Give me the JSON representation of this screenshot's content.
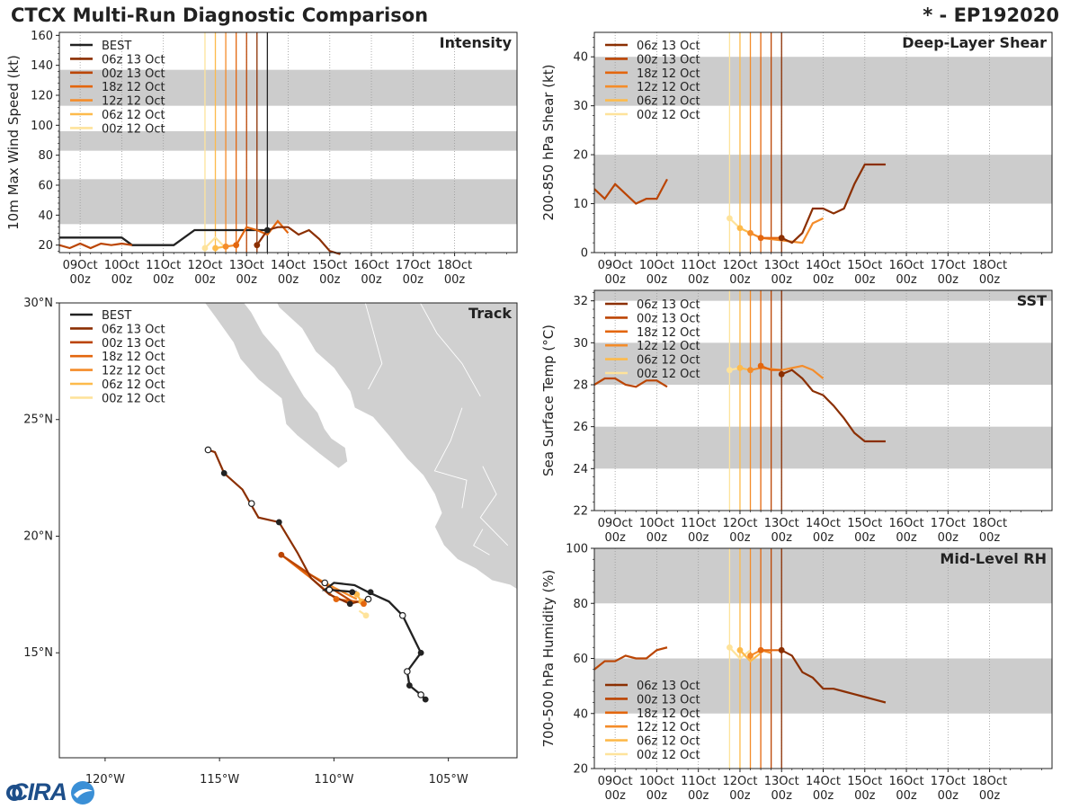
{
  "header": {
    "title": "CTCX Multi-Run Diagnostic Comparison",
    "storm": "* - EP192020"
  },
  "logo": {
    "text": "CIRA"
  },
  "colors": {
    "best": "#222222",
    "runs": [
      "#8b2f02",
      "#bb4504",
      "#e3660e",
      "#f48c2a",
      "#fdba4b",
      "#fee39b"
    ],
    "shade": "#cccccc"
  },
  "legend": {
    "runs": [
      "06z 13 Oct",
      "00z 13 Oct",
      "18z 12 Oct",
      "12z 12 Oct",
      "06z 12 Oct",
      "00z 12 Oct"
    ],
    "best": "BEST"
  },
  "time_axis": {
    "day_labels": [
      "09Oct",
      "10Oct",
      "11Oct",
      "12Oct",
      "13Oct",
      "14Oct",
      "15Oct",
      "16Oct",
      "17Oct",
      "18Oct"
    ],
    "hour_label": "00z"
  },
  "chart_data": [
    {
      "id": "intensity",
      "type": "line",
      "title": "Intensity",
      "ylabel": "10m Max Wind Speed (kt)",
      "xlim": [
        -0.5,
        10.5
      ],
      "ylim": [
        15,
        162
      ],
      "yticks": [
        20,
        40,
        60,
        80,
        100,
        120,
        140,
        160
      ],
      "bands": [
        [
          34,
          64
        ],
        [
          83,
          96
        ],
        [
          113,
          137
        ]
      ],
      "run_markers_day": [
        4.25,
        4.0,
        3.75,
        3.5,
        3.25,
        3.0
      ],
      "best_marker_day": 4.5,
      "best": {
        "x": [
          -0.5,
          1.0,
          1.25,
          2.25,
          2.75,
          4.5
        ],
        "y": [
          25,
          25,
          20,
          20,
          30,
          30
        ]
      },
      "series": [
        {
          "name": "06z 13 Oct",
          "x": [
            4.25,
            4.5,
            4.75,
            5.0,
            5.25,
            5.5,
            5.75,
            6.0,
            6.25
          ],
          "y": [
            20,
            30,
            32,
            32,
            27,
            30,
            24,
            16,
            14
          ],
          "dot": [
            0
          ]
        },
        {
          "name": "00z 13 Oct",
          "x": [
            -0.5,
            -0.25,
            0.0,
            0.25,
            0.5,
            0.75,
            1.0,
            1.25
          ],
          "y": [
            20,
            18,
            21,
            18,
            21,
            20,
            21,
            20
          ],
          "dot": []
        },
        {
          "name": "18z 12 Oct",
          "x": [
            3.75,
            4.0,
            4.25,
            4.5,
            4.75,
            5.0
          ],
          "y": [
            20,
            32,
            30,
            27,
            36,
            28
          ],
          "dot": [
            0
          ]
        },
        {
          "name": "12z 12 Oct",
          "x": [
            3.5,
            3.75
          ],
          "y": [
            19,
            20
          ],
          "dot": [
            0
          ]
        },
        {
          "name": "06z 12 Oct",
          "x": [
            3.25,
            3.5
          ],
          "y": [
            18,
            19
          ],
          "dot": [
            0
          ]
        },
        {
          "name": "00z 12 Oct",
          "x": [
            3.0,
            3.25,
            3.5
          ],
          "y": [
            18,
            25,
            18
          ],
          "dot": [
            0
          ]
        }
      ]
    },
    {
      "id": "shear",
      "type": "line",
      "title": "Deep-Layer Shear",
      "ylabel": "200-850 hPa Shear (kt)",
      "xlim": [
        -0.5,
        10.5
      ],
      "ylim": [
        0,
        45
      ],
      "yticks": [
        0,
        10,
        20,
        30,
        40
      ],
      "bands": [
        [
          10,
          20
        ],
        [
          30,
          40
        ]
      ],
      "run_markers_day": [
        4.0,
        3.75,
        3.5,
        3.25,
        3.0,
        2.75
      ],
      "series": [
        {
          "name": "06z 13 Oct",
          "x": [
            4.0,
            4.25,
            4.5,
            4.75,
            5.0,
            5.25,
            5.5,
            5.75,
            6.0,
            6.25,
            6.5
          ],
          "y": [
            3,
            2,
            4,
            9,
            9,
            8,
            9,
            14,
            18,
            18,
            18
          ],
          "dot": [
            0
          ]
        },
        {
          "name": "00z 13 Oct",
          "x": [
            -0.5,
            -0.25,
            0.0,
            0.25,
            0.5,
            0.75,
            1.0,
            1.25
          ],
          "y": [
            13,
            11,
            14,
            12,
            10,
            11,
            11,
            15
          ],
          "dot": []
        },
        {
          "name": "18z 12 Oct",
          "x": [
            3.5,
            3.75,
            4.0
          ],
          "y": [
            3,
            3,
            3
          ],
          "dot": [
            0
          ]
        },
        {
          "name": "12z 12 Oct",
          "x": [
            3.25,
            3.5,
            4.5,
            4.75,
            5.0
          ],
          "y": [
            4,
            3,
            2,
            6,
            7
          ],
          "dot": [
            0
          ]
        },
        {
          "name": "06z 12 Oct",
          "x": [
            3.0,
            3.25
          ],
          "y": [
            5,
            4
          ],
          "dot": [
            0
          ]
        },
        {
          "name": "00z 12 Oct",
          "x": [
            2.75,
            3.0
          ],
          "y": [
            7,
            5
          ],
          "dot": [
            0
          ]
        }
      ]
    },
    {
      "id": "sst",
      "type": "line",
      "title": "SST",
      "ylabel": "Sea Surface Temp (°C)",
      "xlim": [
        -0.5,
        10.5
      ],
      "ylim": [
        22,
        32.5
      ],
      "yticks": [
        22,
        24,
        26,
        28,
        30,
        32
      ],
      "bands": [
        [
          24,
          26
        ],
        [
          28,
          30
        ],
        [
          32,
          34
        ]
      ],
      "run_markers_day": [
        4.0,
        3.75,
        3.5,
        3.25,
        3.0,
        2.75
      ],
      "series": [
        {
          "name": "06z 13 Oct",
          "x": [
            4.0,
            4.25,
            4.5,
            4.75,
            5.0,
            5.25,
            5.5,
            5.75,
            6.0,
            6.25,
            6.5
          ],
          "y": [
            28.5,
            28.7,
            28.3,
            27.7,
            27.5,
            27.0,
            26.4,
            25.7,
            25.3,
            25.3,
            25.3
          ],
          "dot": [
            0
          ]
        },
        {
          "name": "00z 13 Oct",
          "x": [
            -0.5,
            -0.25,
            0.0,
            0.25,
            0.5,
            0.75,
            1.0,
            1.25
          ],
          "y": [
            28.0,
            28.3,
            28.3,
            28.0,
            27.9,
            28.2,
            28.2,
            27.9
          ],
          "dot": []
        },
        {
          "name": "18z 12 Oct",
          "x": [
            3.5,
            3.75,
            4.0
          ],
          "y": [
            28.9,
            28.7,
            28.7
          ],
          "dot": [
            0
          ]
        },
        {
          "name": "12z 12 Oct",
          "x": [
            3.25,
            3.5,
            4.0,
            4.5,
            4.75,
            5.0
          ],
          "y": [
            28.7,
            28.8,
            28.7,
            28.9,
            28.7,
            28.3
          ],
          "dot": [
            0
          ]
        },
        {
          "name": "06z 12 Oct",
          "x": [
            3.0,
            3.25
          ],
          "y": [
            28.8,
            28.7
          ],
          "dot": [
            0
          ]
        },
        {
          "name": "00z 12 Oct",
          "x": [
            2.75,
            3.0
          ],
          "y": [
            28.7,
            28.8
          ],
          "dot": [
            0
          ]
        }
      ]
    },
    {
      "id": "rh",
      "type": "line",
      "title": "Mid-Level RH",
      "ylabel": "700-500 hPa Humidity (%)",
      "xlim": [
        -0.5,
        10.5
      ],
      "ylim": [
        20,
        100
      ],
      "yticks": [
        20,
        40,
        60,
        80,
        100
      ],
      "bands": [
        [
          40,
          60
        ],
        [
          80,
          100
        ]
      ],
      "run_markers_day": [
        4.0,
        3.75,
        3.5,
        3.25,
        3.0,
        2.75
      ],
      "series": [
        {
          "name": "06z 13 Oct",
          "x": [
            4.0,
            4.25,
            4.5,
            4.75,
            5.0,
            5.25,
            5.5,
            5.75,
            6.0,
            6.25,
            6.5
          ],
          "y": [
            63,
            61,
            55,
            53,
            49,
            49,
            48,
            47,
            46,
            45,
            44
          ],
          "dot": [
            0
          ]
        },
        {
          "name": "00z 13 Oct",
          "x": [
            -0.5,
            -0.25,
            0.0,
            0.25,
            0.5,
            0.75,
            1.0,
            1.25
          ],
          "y": [
            56,
            59,
            59,
            61,
            60,
            60,
            63,
            64
          ],
          "dot": []
        },
        {
          "name": "18z 12 Oct",
          "x": [
            3.5,
            3.75,
            4.0
          ],
          "y": [
            63,
            63,
            63
          ],
          "dot": [
            0
          ]
        },
        {
          "name": "12z 12 Oct",
          "x": [
            3.25,
            3.5,
            3.75
          ],
          "y": [
            61,
            63,
            62
          ],
          "dot": [
            0
          ]
        },
        {
          "name": "06z 12 Oct",
          "x": [
            3.0,
            3.25,
            3.5
          ],
          "y": [
            63,
            59,
            62
          ],
          "dot": [
            0
          ]
        },
        {
          "name": "00z 12 Oct",
          "x": [
            2.75,
            3.0,
            3.25
          ],
          "y": [
            64,
            60,
            63
          ],
          "dot": [
            0
          ]
        }
      ]
    },
    {
      "id": "track",
      "type": "scatter",
      "title": "Track",
      "lon_range": [
        -122,
        -102
      ],
      "lat_range": [
        10.5,
        30
      ],
      "xticks": [
        -120,
        -115,
        -110,
        -105
      ],
      "xtick_labels": [
        "120°W",
        "115°W",
        "110°W",
        "105°W"
      ],
      "yticks": [
        15,
        20,
        25,
        30
      ],
      "ytick_labels": [
        "15°N",
        "20°N",
        "25°N",
        "30°N"
      ],
      "best": {
        "lon": [
          -106.0,
          -106.2,
          -106.7,
          -106.8,
          -106.2,
          -107.0,
          -107.6,
          -108.5,
          -109.1,
          -110.0,
          -110.4,
          -110.2,
          -109.0
        ],
        "lat": [
          13.0,
          13.2,
          13.6,
          14.2,
          15.0,
          16.6,
          17.2,
          17.6,
          17.9,
          18.0,
          17.7,
          17.7,
          17.6
        ],
        "dots": [
          [
            -106.0,
            13.0,
            "f"
          ],
          [
            -106.2,
            13.2,
            "o"
          ],
          [
            -106.7,
            13.6,
            "f"
          ],
          [
            -106.8,
            14.2,
            "o"
          ],
          [
            -106.2,
            15.0,
            "f"
          ],
          [
            -107.0,
            16.6,
            "o"
          ],
          [
            -108.4,
            17.6,
            "f"
          ],
          [
            -109.2,
            17.6,
            "f"
          ],
          [
            -110.2,
            17.7,
            "o"
          ],
          [
            -110.4,
            18.0,
            "o"
          ]
        ]
      },
      "series": [
        {
          "name": "06z 13 Oct",
          "lon": [
            -108.5,
            -109.3,
            -110.2,
            -111.0,
            -111.6,
            -112.4,
            -113.3,
            -114.0,
            -114.8,
            -115.2,
            -115.5
          ],
          "lat": [
            17.3,
            17.1,
            17.5,
            18.2,
            19.3,
            20.6,
            20.8,
            22.0,
            22.7,
            23.6,
            23.7
          ],
          "dots": [
            [
              -108.5,
              17.3,
              "o"
            ],
            [
              -109.3,
              17.1,
              "f"
            ],
            [
              -112.4,
              20.6,
              "f"
            ],
            [
              -113.6,
              21.4,
              "o"
            ],
            [
              -114.8,
              22.7,
              "f"
            ],
            [
              -115.5,
              23.7,
              "o"
            ]
          ]
        },
        {
          "name": "00z 13 Oct",
          "lon": [
            -112.3,
            -110.5,
            -109.2
          ],
          "lat": [
            19.2,
            18.0,
            17.2
          ],
          "dots": [
            [
              -112.3,
              19.2,
              "f"
            ]
          ]
        },
        {
          "name": "18z 12 Oct",
          "lon": [
            -112.3,
            -111.0,
            -109.9,
            -109.0,
            -108.7
          ],
          "lat": [
            19.2,
            18.2,
            17.3,
            17.2,
            17.1
          ],
          "dots": [
            [
              -109.9,
              17.3,
              "f"
            ],
            [
              -108.7,
              17.1,
              "f"
            ]
          ]
        },
        {
          "name": "12z 12 Oct",
          "lon": [
            -111.5,
            -110.0,
            -109.0
          ],
          "lat": [
            18.6,
            17.8,
            17.3
          ],
          "dots": []
        },
        {
          "name": "06z 12 Oct",
          "lon": [
            -109.0,
            -108.8
          ],
          "lat": [
            17.5,
            17.2
          ],
          "dots": [
            [
              -109.0,
              17.5,
              "f"
            ],
            [
              -108.8,
              17.2,
              "f"
            ]
          ]
        },
        {
          "name": "00z 12 Oct",
          "lon": [
            -108.9,
            -108.6
          ],
          "lat": [
            16.8,
            16.6
          ],
          "dots": [
            [
              -108.6,
              16.6,
              "f"
            ]
          ]
        }
      ]
    }
  ]
}
